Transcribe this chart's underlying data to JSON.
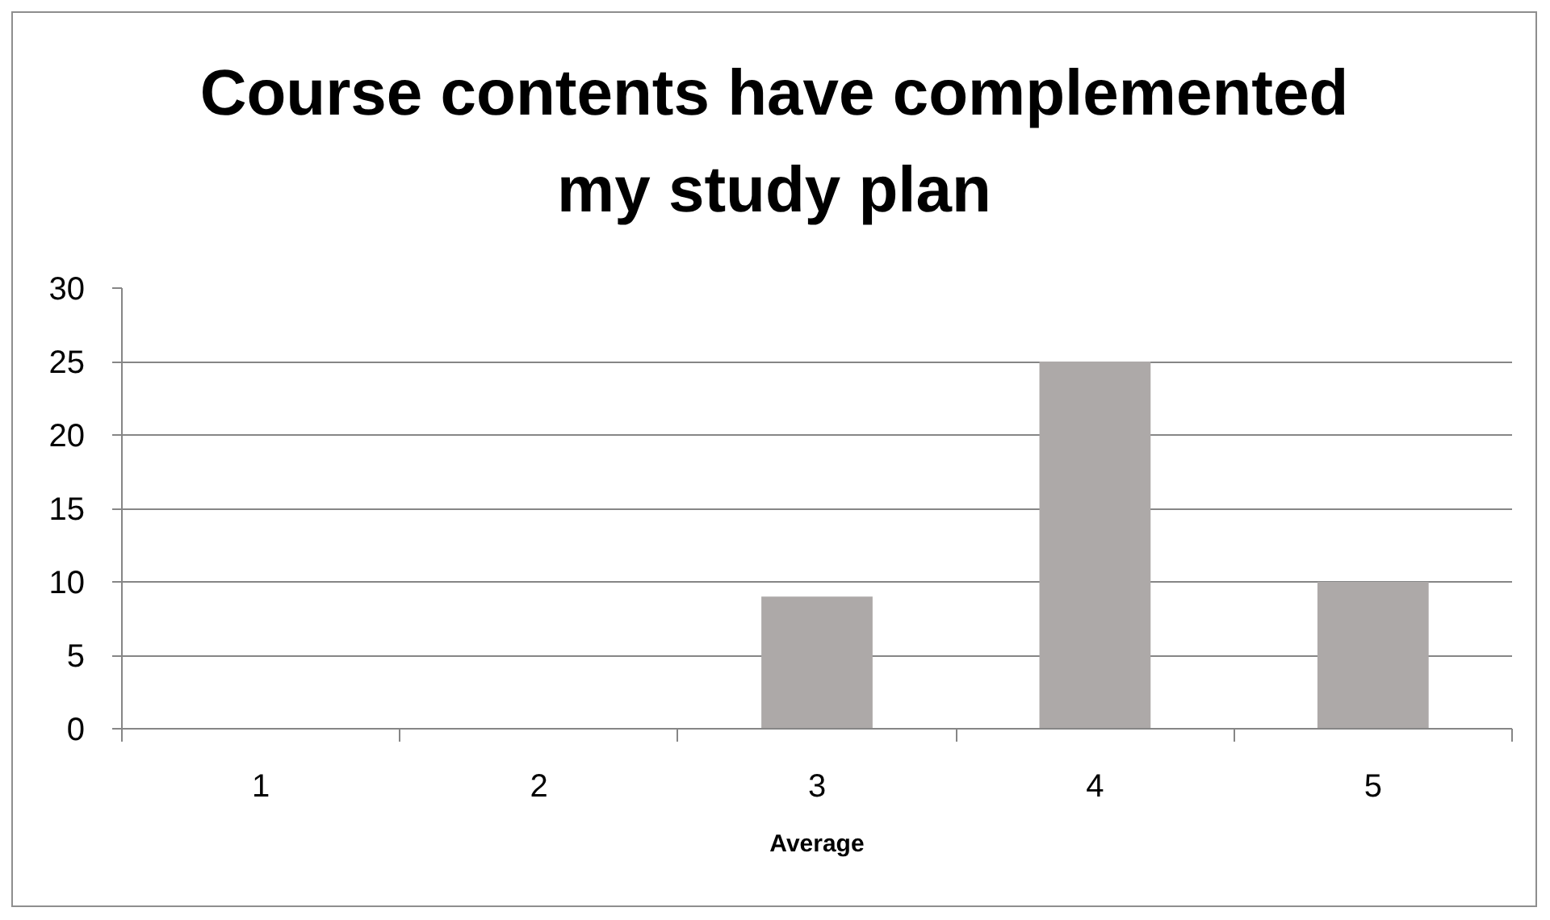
{
  "chart_data": {
    "type": "bar",
    "title": "Course contents have complemented my study plan",
    "xlabel": "Average",
    "categories": [
      "1",
      "2",
      "3",
      "4",
      "5"
    ],
    "values": [
      0,
      0,
      9,
      25,
      10
    ],
    "color": "#ada9a8",
    "ylim": [
      0,
      30
    ],
    "yticks": [
      0,
      5,
      10,
      15,
      20,
      25,
      30
    ],
    "grid": "y"
  }
}
